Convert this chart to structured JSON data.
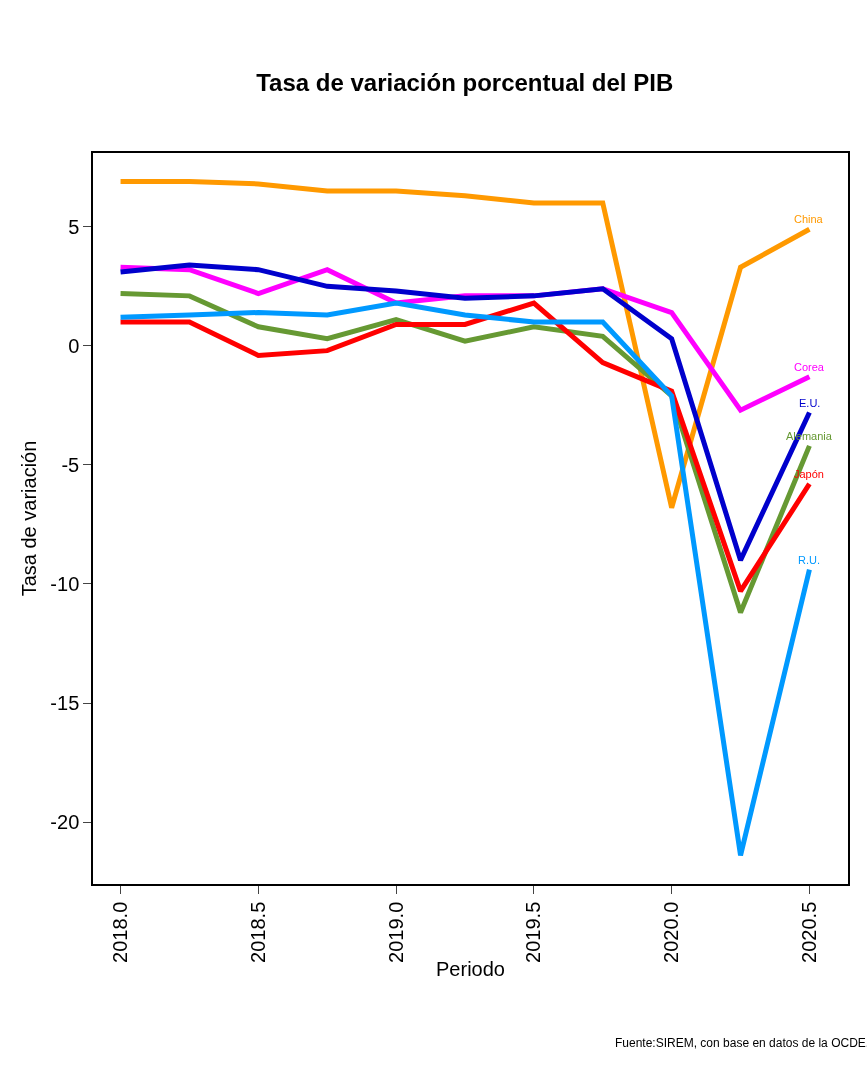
{
  "chart_data": {
    "type": "line",
    "title": "Tasa de variación porcentual del PIB",
    "xlabel": "Periodo",
    "ylabel": "Tasa de variación",
    "x": [
      2018,
      2018.25,
      2018.5,
      2018.75,
      2019,
      2019.25,
      2019.5,
      2019.75,
      2020,
      2020.25,
      2020.5
    ],
    "series": [
      {
        "name": "China",
        "color": "#ff9900",
        "values": [
          6.9,
          6.9,
          6.8,
          6.5,
          6.5,
          6.3,
          6.0,
          6.0,
          -6.8,
          3.3,
          4.9
        ]
      },
      {
        "name": "Corea",
        "color": "#ff00ff",
        "values": [
          3.3,
          3.2,
          2.2,
          3.2,
          1.8,
          2.1,
          2.1,
          2.4,
          1.4,
          -2.7,
          -1.3
        ]
      },
      {
        "name": "E.U.",
        "color": "#0000cc",
        "values": [
          3.1,
          3.4,
          3.2,
          2.5,
          2.3,
          2.0,
          2.1,
          2.4,
          0.3,
          -9.0,
          -2.8
        ]
      },
      {
        "name": "Alemania",
        "color": "#669933",
        "values": [
          2.2,
          2.1,
          0.8,
          0.3,
          1.1,
          0.2,
          0.8,
          0.4,
          -2.1,
          -11.2,
          -4.2
        ]
      },
      {
        "name": "Japón",
        "color": "#ff0000",
        "values": [
          1.0,
          1.0,
          -0.4,
          -0.2,
          0.9,
          0.9,
          1.8,
          -0.7,
          -1.9,
          -10.3,
          -5.8
        ]
      },
      {
        "name": "R.U.",
        "color": "#0099ff",
        "values": [
          1.2,
          1.3,
          1.4,
          1.3,
          1.8,
          1.3,
          1.0,
          1.0,
          -2.1,
          -21.4,
          -9.4
        ]
      }
    ],
    "xlim": [
      2017.9,
      2020.64
    ],
    "ylim": [
      -22.6,
      8.1
    ],
    "xticks": [
      {
        "value": 2018,
        "label": "2018.0"
      },
      {
        "value": 2018.5,
        "label": "2018.5"
      },
      {
        "value": 2019,
        "label": "2019.0"
      },
      {
        "value": 2019.5,
        "label": "2019.5"
      },
      {
        "value": 2020,
        "label": "2020.0"
      },
      {
        "value": 2020.5,
        "label": "2020.5"
      }
    ],
    "yticks": [
      -20,
      -15,
      -10,
      -5,
      0,
      5
    ],
    "grid": false,
    "legend": false,
    "marker": "none",
    "line_style": "solid",
    "annotations": [
      "Fuente:SIREM, con base en datos de la OCDE."
    ]
  }
}
